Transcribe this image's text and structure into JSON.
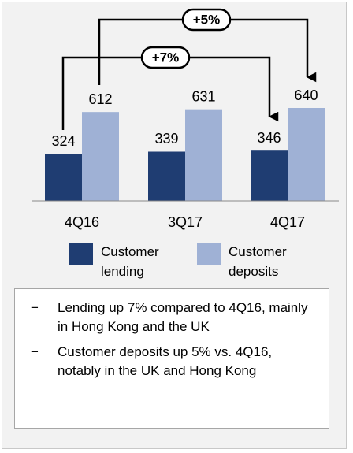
{
  "chart_data": {
    "type": "bar",
    "categories": [
      "4Q16",
      "3Q17",
      "4Q17"
    ],
    "series": [
      {
        "name": "Customer lending",
        "color": "#1f3d72",
        "values": [
          324,
          339,
          346
        ]
      },
      {
        "name": "Customer deposits",
        "color": "#9fb1d5",
        "values": [
          612,
          631,
          640
        ]
      }
    ],
    "annotations": [
      "+7%",
      "+5%"
    ]
  },
  "notes": [
    "Lending up 7% compared to 4Q16, mainly in Hong Kong and the UK",
    "Customer deposits up 5% vs. 4Q16, notably in the UK and Hong Kong"
  ]
}
